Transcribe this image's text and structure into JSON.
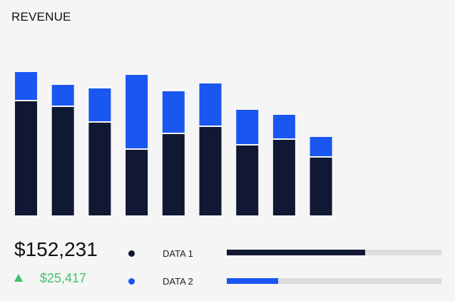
{
  "title": "REVENUE",
  "summary": {
    "total": "$152,231",
    "change": "$25,417",
    "change_color": "#3ec46d"
  },
  "legend": [
    {
      "label": "DATA 1",
      "color": "#111833",
      "share": 0.645
    },
    {
      "label": "DATA 2",
      "color": "#1a56f0",
      "share": 0.24
    }
  ],
  "chart_data": {
    "type": "bar",
    "stacked": true,
    "title": "REVENUE",
    "categories": [
      "",
      "",
      "",
      "",
      "",
      "",
      "",
      "",
      ""
    ],
    "series": [
      {
        "name": "DATA 1",
        "color": "#111833",
        "values": [
          160,
          152,
          130,
          92,
          114,
          124,
          98,
          106,
          81
        ]
      },
      {
        "name": "DATA 2",
        "color": "#1a56f0",
        "values": [
          41,
          31,
          48,
          105,
          60,
          61,
          50,
          35,
          29
        ]
      }
    ],
    "ylim": [
      0,
      210
    ],
    "grid": false
  }
}
